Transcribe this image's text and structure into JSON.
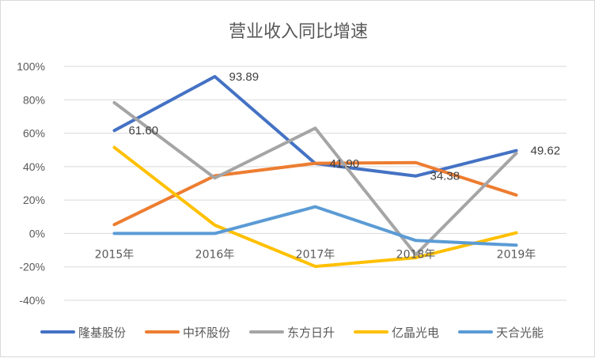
{
  "chart_data": {
    "type": "line",
    "title": "营业收入同比增速",
    "categories": [
      "2015年",
      "2016年",
      "2017年",
      "2018年",
      "2019年"
    ],
    "y_ticks": [
      "100%",
      "80%",
      "60%",
      "40%",
      "20%",
      "0%",
      "-20%",
      "-40%"
    ],
    "ylim": [
      -40,
      100
    ],
    "grid": true,
    "legend_position": "bottom",
    "series": [
      {
        "name": "隆基股份",
        "color": "#4472c4",
        "values": [
          61.6,
          93.89,
          41.9,
          34.38,
          49.62
        ]
      },
      {
        "name": "中环股份",
        "color": "#ed7d31",
        "values": [
          5.3,
          34.5,
          42.0,
          42.4,
          23.0
        ]
      },
      {
        "name": "东方日升",
        "color": "#a5a5a5",
        "values": [
          78.3,
          33.2,
          63.0,
          -12.7,
          48.0
        ]
      },
      {
        "name": "亿晶光电",
        "color": "#ffc000",
        "values": [
          51.5,
          5.0,
          -19.7,
          -14.5,
          0.4
        ]
      },
      {
        "name": "天合光能",
        "color": "#5b9bd5",
        "values": [
          0.0,
          0.0,
          16.0,
          -4.2,
          -7.0
        ]
      }
    ],
    "data_labels": [
      {
        "series": 0,
        "point": 0,
        "text": "61.60"
      },
      {
        "series": 0,
        "point": 1,
        "text": "93.89"
      },
      {
        "series": 0,
        "point": 2,
        "text": "41.90"
      },
      {
        "series": 0,
        "point": 3,
        "text": "34.38"
      },
      {
        "series": 0,
        "point": 4,
        "text": "49.62"
      }
    ]
  }
}
